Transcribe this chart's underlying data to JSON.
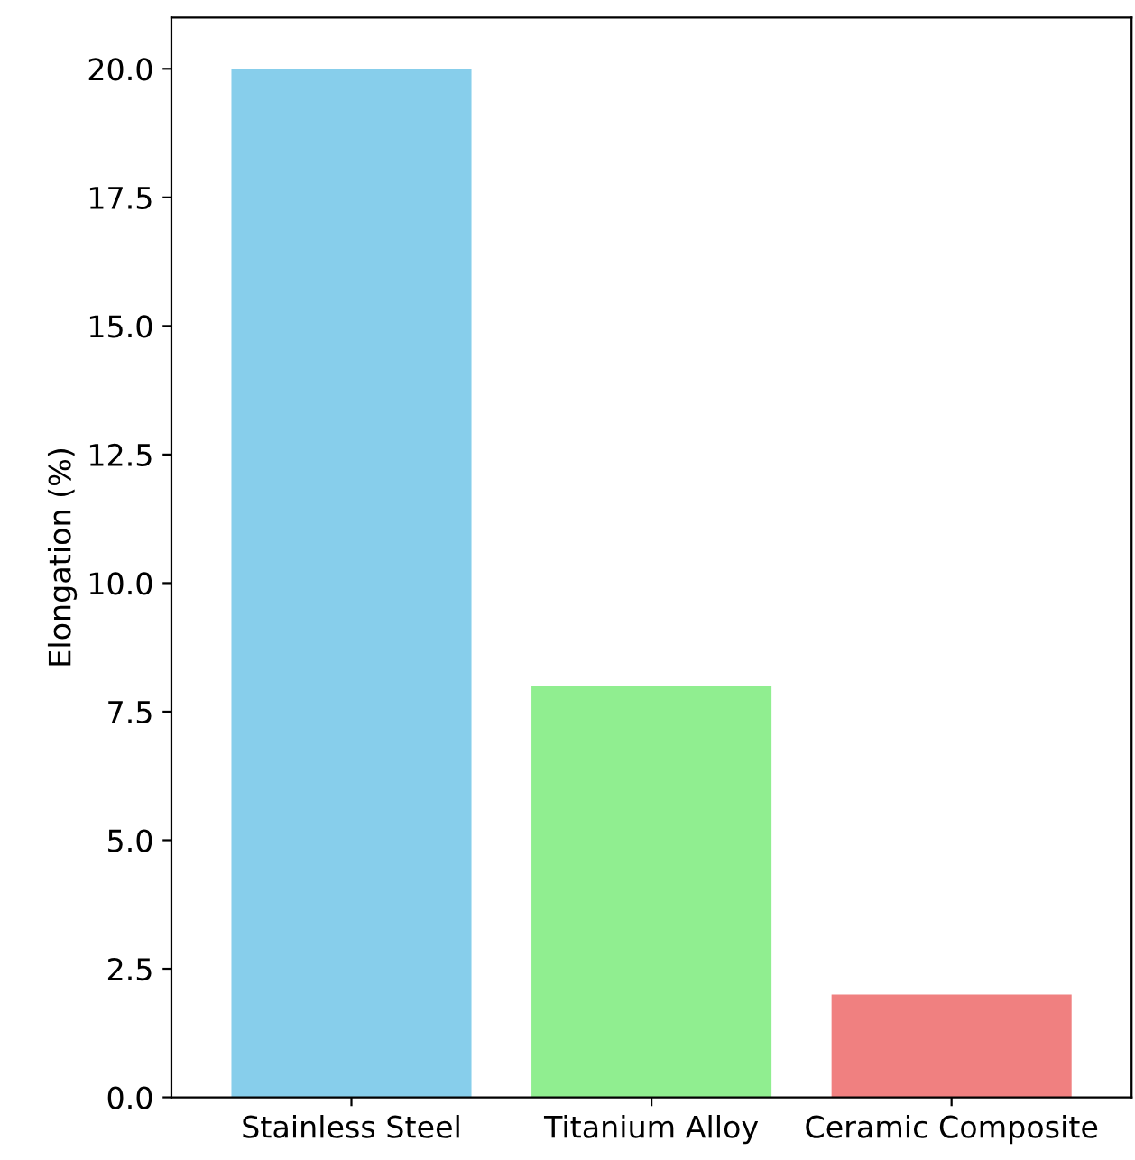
{
  "chart_data": {
    "type": "bar",
    "ylabel": "Elongation (%)",
    "categories": [
      "Stainless Steel",
      "Titanium Alloy",
      "Ceramic Composite"
    ],
    "values": [
      20,
      8,
      2
    ],
    "colors": [
      "#87ceeb",
      "#90ee90",
      "#f08080"
    ],
    "ylim": [
      0,
      21
    ],
    "yticks": [
      {
        "value": 0,
        "label": "0.0"
      },
      {
        "value": 2.5,
        "label": "2.5"
      },
      {
        "value": 5,
        "label": "5.0"
      },
      {
        "value": 7.5,
        "label": "7.5"
      },
      {
        "value": 10,
        "label": "10.0"
      },
      {
        "value": 12.5,
        "label": "12.5"
      },
      {
        "value": 15,
        "label": "15.0"
      },
      {
        "value": 17.5,
        "label": "17.5"
      },
      {
        "value": 20,
        "label": "20.0"
      }
    ]
  }
}
